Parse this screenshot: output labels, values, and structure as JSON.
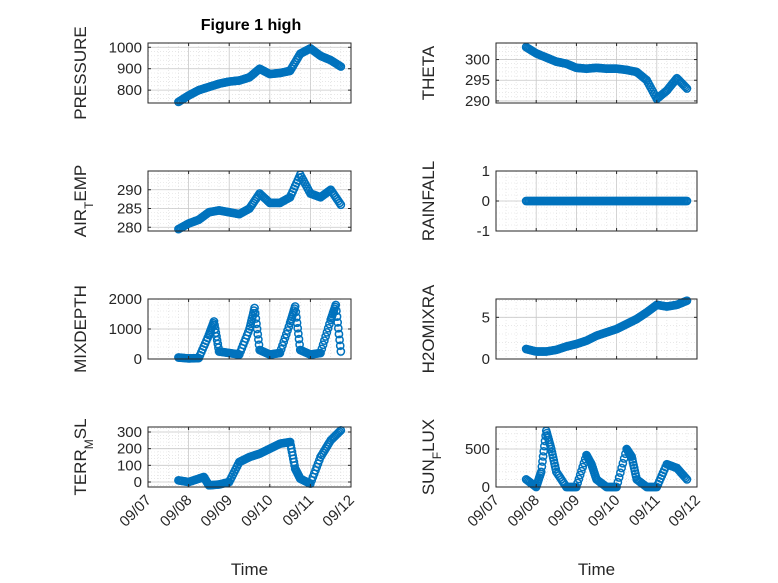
{
  "figure": {
    "title": "Figure 1 high"
  },
  "colors": {
    "marker": "#0072BD",
    "grid": "#d9d9d9",
    "axis": "#262626"
  },
  "chart_data": [
    {
      "type": "scatter",
      "ylabel": "PRESSURE",
      "yticks": [
        "800",
        "900",
        "1000"
      ],
      "ylim": [
        740,
        1020
      ],
      "grid": true,
      "x": [
        "09/07 18:00",
        "09/08 00:00",
        "09/08 06:00",
        "09/08 12:00",
        "09/08 18:00",
        "09/09 00:00",
        "09/09 06:00",
        "09/09 12:00",
        "09/09 18:00",
        "09/10 00:00",
        "09/10 06:00",
        "09/10 12:00",
        "09/10 18:00",
        "09/11 00:00",
        "09/11 06:00",
        "09/11 12:00",
        "09/11 18:00"
      ],
      "y": [
        745,
        775,
        800,
        815,
        830,
        840,
        845,
        860,
        900,
        875,
        880,
        890,
        970,
        995,
        960,
        940,
        910
      ]
    },
    {
      "type": "scatter",
      "ylabel": "THETA",
      "yticks": [
        "290",
        "295",
        "300"
      ],
      "ylim": [
        289.5,
        304
      ],
      "grid": true,
      "x": [
        "09/07 18:00",
        "09/08 00:00",
        "09/08 06:00",
        "09/08 12:00",
        "09/08 18:00",
        "09/09 00:00",
        "09/09 06:00",
        "09/09 12:00",
        "09/09 18:00",
        "09/10 00:00",
        "09/10 06:00",
        "09/10 12:00",
        "09/10 18:00",
        "09/11 00:00",
        "09/11 06:00",
        "09/11 12:00",
        "09/11 18:00"
      ],
      "y": [
        303,
        301.5,
        300.5,
        299.5,
        299,
        298,
        297.8,
        298,
        297.8,
        297.8,
        297.5,
        297,
        295,
        290.5,
        292.5,
        295.5,
        293
      ]
    },
    {
      "type": "scatter",
      "ylabel": "AIR_TEMP",
      "ylabel_main": "AIR",
      "ylabel_sub": "T",
      "ylabel_rest": "EMP",
      "yticks": [
        "280",
        "285",
        "290"
      ],
      "ylim": [
        279,
        295
      ],
      "grid": true,
      "x": [
        "09/07 18:00",
        "09/08 00:00",
        "09/08 06:00",
        "09/08 12:00",
        "09/08 18:00",
        "09/09 00:00",
        "09/09 06:00",
        "09/09 12:00",
        "09/09 18:00",
        "09/10 00:00",
        "09/10 06:00",
        "09/10 12:00",
        "09/10 18:00",
        "09/11 00:00",
        "09/11 06:00",
        "09/11 12:00",
        "09/11 18:00"
      ],
      "y": [
        279.5,
        281,
        282,
        284,
        284.5,
        284,
        283.5,
        285,
        289,
        286.5,
        286.5,
        288,
        294,
        289,
        288,
        290,
        286
      ]
    },
    {
      "type": "scatter",
      "ylabel": "RAINFALL",
      "yticks": [
        "-1",
        "0",
        "1"
      ],
      "ylim": [
        -1,
        1
      ],
      "grid": true,
      "x": [
        "09/07 18:00",
        "09/08 06:00",
        "09/08 18:00",
        "09/09 06:00",
        "09/09 18:00",
        "09/10 06:00",
        "09/10 18:00",
        "09/11 06:00",
        "09/11 18:00"
      ],
      "y": [
        0,
        0,
        0,
        0,
        0,
        0,
        0,
        0,
        0
      ]
    },
    {
      "type": "scatter",
      "ylabel": "MIXDEPTH",
      "yticks": [
        "0",
        "1000",
        "2000"
      ],
      "ylim": [
        0,
        2000
      ],
      "grid": true,
      "x": [
        "09/07 18:00",
        "09/08 00:00",
        "09/08 06:00",
        "09/08 12:00",
        "09/08 15:00",
        "09/08 18:00",
        "09/09 00:00",
        "09/09 06:00",
        "09/09 12:00",
        "09/09 15:00",
        "09/09 18:00",
        "09/10 00:00",
        "09/10 06:00",
        "09/10 12:00",
        "09/10 15:00",
        "09/10 18:00",
        "09/11 00:00",
        "09/11 06:00",
        "09/11 12:00",
        "09/11 15:00",
        "09/11 18:00"
      ],
      "y": [
        50,
        20,
        30,
        800,
        1250,
        250,
        200,
        150,
        1000,
        1700,
        300,
        150,
        200,
        1200,
        1750,
        300,
        150,
        200,
        1300,
        1800,
        250
      ]
    },
    {
      "type": "scatter",
      "ylabel": "H2OMIXRA",
      "yticks": [
        "0",
        "5"
      ],
      "ylim": [
        0,
        7.2
      ],
      "grid": true,
      "x": [
        "09/07 18:00",
        "09/08 00:00",
        "09/08 06:00",
        "09/08 12:00",
        "09/08 18:00",
        "09/09 00:00",
        "09/09 06:00",
        "09/09 12:00",
        "09/09 18:00",
        "09/10 00:00",
        "09/10 06:00",
        "09/10 12:00",
        "09/10 18:00",
        "09/11 00:00",
        "09/11 06:00",
        "09/11 12:00",
        "09/11 18:00"
      ],
      "y": [
        1.2,
        0.9,
        0.9,
        1.1,
        1.5,
        1.8,
        2.2,
        2.8,
        3.2,
        3.6,
        4.2,
        4.8,
        5.6,
        6.5,
        6.3,
        6.5,
        7
      ]
    },
    {
      "type": "scatter",
      "ylabel": "TERR_MSL",
      "ylabel_main": "TERR",
      "ylabel_sub": "M",
      "ylabel_rest": "SL",
      "yticks": [
        "0",
        "100",
        "200",
        "300"
      ],
      "ylim": [
        -30,
        330
      ],
      "grid": true,
      "xlabel": "Time",
      "xticks": [
        "09/07",
        "09/08",
        "09/09",
        "09/10",
        "09/11",
        "09/12"
      ],
      "x": [
        "09/07 18:00",
        "09/08 00:00",
        "09/08 06:00",
        "09/08 09:00",
        "09/08 12:00",
        "09/08 18:00",
        "09/09 00:00",
        "09/09 06:00",
        "09/09 12:00",
        "09/09 18:00",
        "09/10 00:00",
        "09/10 06:00",
        "09/10 12:00",
        "09/10 15:00",
        "09/10 18:00",
        "09/11 00:00",
        "09/11 06:00",
        "09/11 12:00",
        "09/11 18:00"
      ],
      "y": [
        10,
        0,
        20,
        30,
        -20,
        -15,
        0,
        120,
        150,
        170,
        200,
        230,
        240,
        80,
        20,
        -10,
        150,
        250,
        310
      ]
    },
    {
      "type": "scatter",
      "ylabel": "SUN_FLUX",
      "ylabel_main": "SUN",
      "ylabel_sub": "F",
      "ylabel_rest": "LUX",
      "yticks": [
        "0",
        "500"
      ],
      "ylim": [
        0,
        790
      ],
      "grid": true,
      "xlabel": "Time",
      "xticks": [
        "09/07",
        "09/08",
        "09/09",
        "09/10",
        "09/11",
        "09/12"
      ],
      "x": [
        "09/07 18:00",
        "09/08 00:00",
        "09/08 03:00",
        "09/08 06:00",
        "09/08 09:00",
        "09/08 12:00",
        "09/08 18:00",
        "09/09 00:00",
        "09/09 06:00",
        "09/09 09:00",
        "09/09 12:00",
        "09/09 18:00",
        "09/10 00:00",
        "09/10 06:00",
        "09/10 09:00",
        "09/10 12:00",
        "09/10 18:00",
        "09/11 00:00",
        "09/11 06:00",
        "09/11 12:00",
        "09/11 18:00"
      ],
      "y": [
        100,
        0,
        200,
        740,
        500,
        200,
        0,
        0,
        420,
        300,
        100,
        0,
        0,
        500,
        400,
        100,
        0,
        0,
        300,
        250,
        100
      ]
    }
  ]
}
